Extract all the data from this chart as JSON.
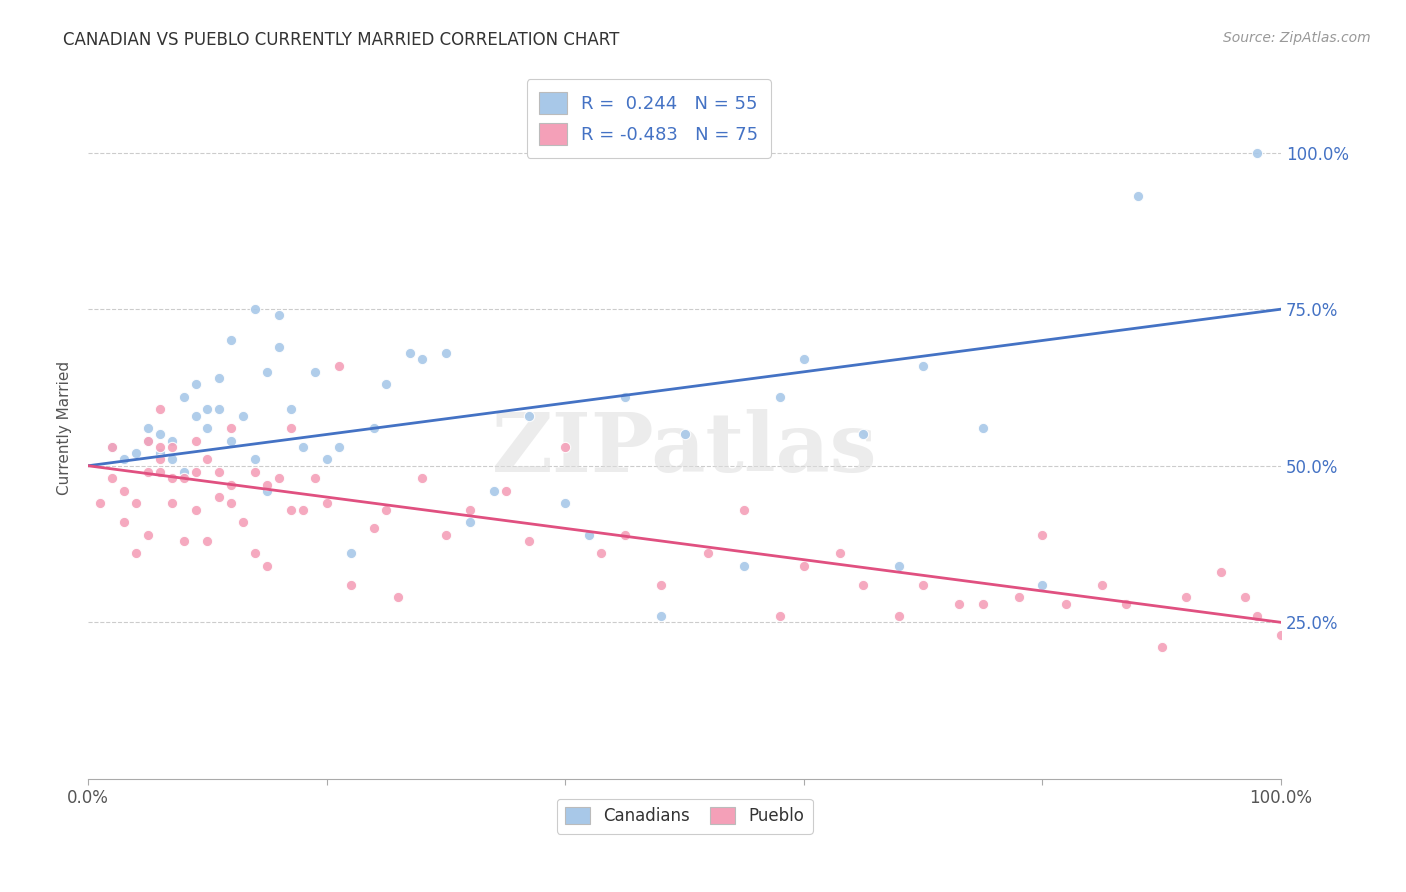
{
  "title": "CANADIAN VS PUEBLO CURRENTLY MARRIED CORRELATION CHART",
  "source": "Source: ZipAtlas.com",
  "ylabel": "Currently Married",
  "watermark": "ZIPatlas",
  "legend_label1": "Canadians",
  "legend_label2": "Pueblo",
  "ytick_labels": [
    "25.0%",
    "50.0%",
    "75.0%",
    "100.0%"
  ],
  "ytick_values": [
    0.25,
    0.5,
    0.75,
    1.0
  ],
  "blue_color": "#A8C8E8",
  "pink_color": "#F4A0B8",
  "blue_line_color": "#4472C4",
  "pink_line_color": "#E05080",
  "blue_intercept": 0.5,
  "blue_slope": 0.25,
  "pink_intercept": 0.5,
  "pink_slope": -0.25,
  "canadians_x": [
    0.02,
    0.03,
    0.04,
    0.05,
    0.05,
    0.06,
    0.06,
    0.07,
    0.07,
    0.08,
    0.08,
    0.09,
    0.09,
    0.1,
    0.1,
    0.11,
    0.11,
    0.12,
    0.12,
    0.13,
    0.14,
    0.14,
    0.15,
    0.15,
    0.16,
    0.16,
    0.17,
    0.18,
    0.19,
    0.2,
    0.21,
    0.22,
    0.24,
    0.25,
    0.27,
    0.28,
    0.3,
    0.32,
    0.34,
    0.37,
    0.4,
    0.42,
    0.45,
    0.48,
    0.5,
    0.55,
    0.58,
    0.6,
    0.65,
    0.68,
    0.7,
    0.75,
    0.8,
    0.88,
    0.98
  ],
  "canadians_y": [
    0.53,
    0.51,
    0.52,
    0.54,
    0.56,
    0.52,
    0.55,
    0.51,
    0.54,
    0.49,
    0.61,
    0.58,
    0.63,
    0.56,
    0.59,
    0.59,
    0.64,
    0.54,
    0.7,
    0.58,
    0.51,
    0.75,
    0.46,
    0.65,
    0.69,
    0.74,
    0.59,
    0.53,
    0.65,
    0.51,
    0.53,
    0.36,
    0.56,
    0.63,
    0.68,
    0.67,
    0.68,
    0.41,
    0.46,
    0.58,
    0.44,
    0.39,
    0.61,
    0.26,
    0.55,
    0.34,
    0.61,
    0.67,
    0.55,
    0.34,
    0.66,
    0.56,
    0.31,
    0.93,
    1.0
  ],
  "pueblo_x": [
    0.01,
    0.02,
    0.02,
    0.03,
    0.03,
    0.04,
    0.04,
    0.05,
    0.05,
    0.05,
    0.06,
    0.06,
    0.06,
    0.06,
    0.07,
    0.07,
    0.07,
    0.08,
    0.08,
    0.09,
    0.09,
    0.09,
    0.1,
    0.1,
    0.11,
    0.11,
    0.12,
    0.12,
    0.12,
    0.13,
    0.14,
    0.14,
    0.15,
    0.15,
    0.16,
    0.17,
    0.17,
    0.18,
    0.19,
    0.2,
    0.21,
    0.22,
    0.24,
    0.25,
    0.26,
    0.28,
    0.3,
    0.32,
    0.35,
    0.37,
    0.4,
    0.43,
    0.45,
    0.48,
    0.52,
    0.55,
    0.58,
    0.6,
    0.63,
    0.65,
    0.68,
    0.7,
    0.73,
    0.75,
    0.78,
    0.8,
    0.82,
    0.85,
    0.87,
    0.9,
    0.92,
    0.95,
    0.97,
    0.98,
    1.0
  ],
  "pueblo_y": [
    0.44,
    0.48,
    0.53,
    0.41,
    0.46,
    0.36,
    0.44,
    0.39,
    0.49,
    0.54,
    0.49,
    0.51,
    0.53,
    0.59,
    0.44,
    0.48,
    0.53,
    0.38,
    0.48,
    0.43,
    0.49,
    0.54,
    0.51,
    0.38,
    0.45,
    0.49,
    0.44,
    0.47,
    0.56,
    0.41,
    0.36,
    0.49,
    0.34,
    0.47,
    0.48,
    0.43,
    0.56,
    0.43,
    0.48,
    0.44,
    0.66,
    0.31,
    0.4,
    0.43,
    0.29,
    0.48,
    0.39,
    0.43,
    0.46,
    0.38,
    0.53,
    0.36,
    0.39,
    0.31,
    0.36,
    0.43,
    0.26,
    0.34,
    0.36,
    0.31,
    0.26,
    0.31,
    0.28,
    0.28,
    0.29,
    0.39,
    0.28,
    0.31,
    0.28,
    0.21,
    0.29,
    0.33,
    0.29,
    0.26,
    0.23
  ]
}
